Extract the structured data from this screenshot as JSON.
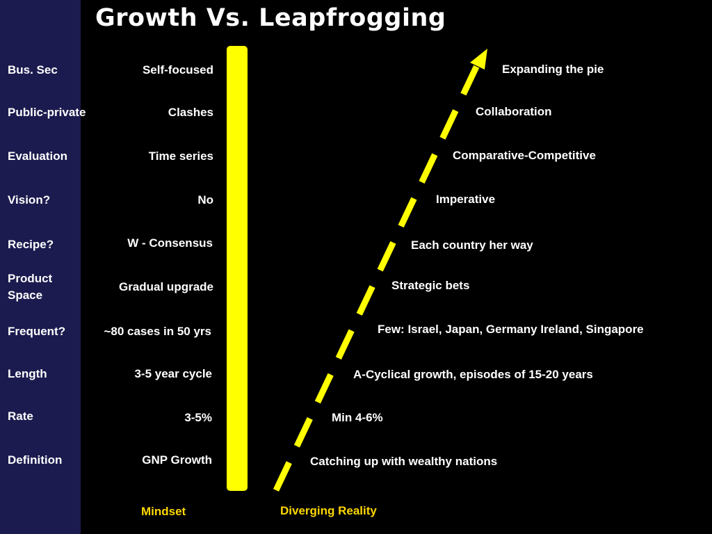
{
  "title": "Growth Vs. Leapfrogging",
  "rows": [
    {
      "label": "Bus. Sec",
      "mindset": "Self-focused",
      "reality": "Expanding the pie"
    },
    {
      "label": "Public-private",
      "mindset": "Clashes",
      "reality": "Collaboration"
    },
    {
      "label": "Evaluation",
      "mindset": "Time series",
      "reality": "Comparative-Competitive"
    },
    {
      "label": "Vision?",
      "mindset": "No",
      "reality": "Imperative"
    },
    {
      "label": "Recipe?",
      "mindset": "W - Consensus",
      "reality": "Each country her way"
    },
    {
      "label": "Product Space",
      "mindset": "Gradual upgrade",
      "reality": "Strategic bets"
    },
    {
      "label": "Frequent?",
      "mindset": "~80 cases in 50 yrs",
      "reality": "Few: Israel, Japan, Germany Ireland, Singapore"
    },
    {
      "label": "Length",
      "mindset": "3-5 year cycle",
      "reality": "A-Cyclical growth, episodes of 15-20 years"
    },
    {
      "label": "Rate",
      "mindset": "3-5%",
      "reality": "Min 4-6%"
    },
    {
      "label": "Definition",
      "mindset": "GNP Growth",
      "reality": "Catching up with wealthy nations"
    }
  ],
  "footer": {
    "mindset": "Mindset",
    "reality": "Diverging Reality"
  },
  "colors": {
    "sidebar": "#1b1b4f",
    "background": "#000000",
    "divider": "#ffff00",
    "arrow": "#ffff00",
    "footer_text": "#ffd700",
    "text": "#ffffff"
  },
  "icons": {
    "arrow": "dashed-arrow-up-right-icon"
  }
}
